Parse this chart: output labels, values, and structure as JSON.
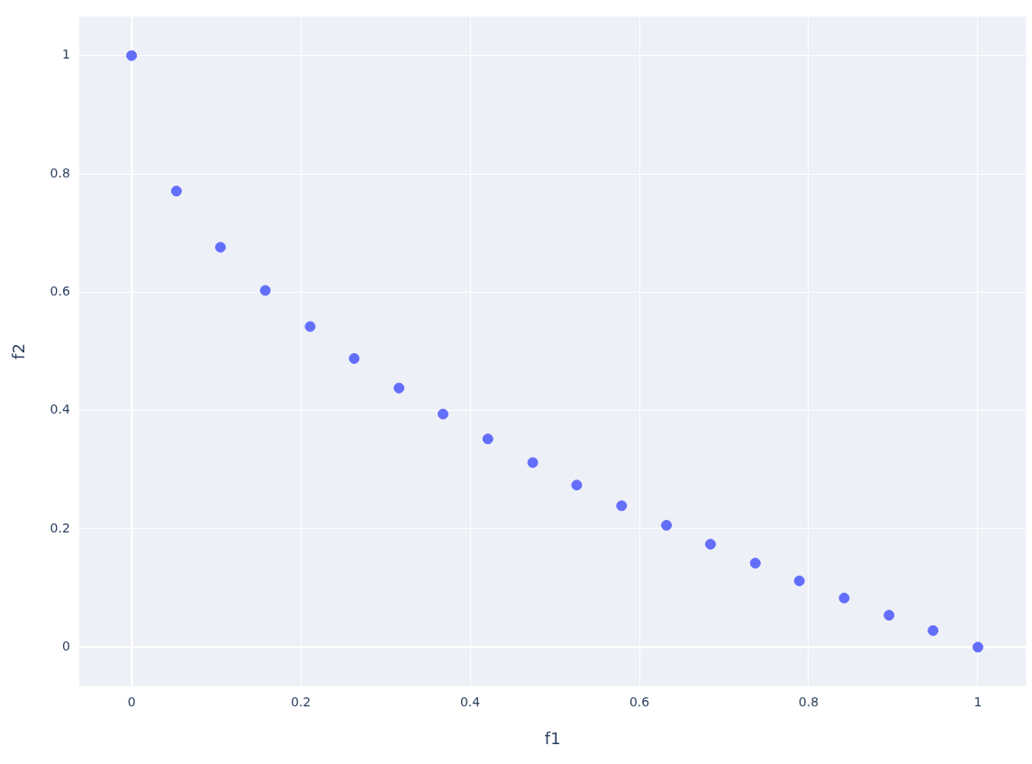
{
  "chart_data": {
    "type": "scatter",
    "xlabel": "f1",
    "ylabel": "f2",
    "x": [
      0,
      0.053,
      0.105,
      0.158,
      0.211,
      0.263,
      0.316,
      0.368,
      0.421,
      0.474,
      0.526,
      0.579,
      0.632,
      0.684,
      0.737,
      0.789,
      0.842,
      0.895,
      0.947,
      1
    ],
    "series": [
      {
        "color": "#636efa",
        "values": [
          1,
          0.771,
          0.676,
          0.603,
          0.542,
          0.488,
          0.438,
          0.394,
          0.352,
          0.312,
          0.274,
          0.239,
          0.206,
          0.174,
          0.142,
          0.112,
          0.083,
          0.054,
          0.028,
          0
        ]
      }
    ],
    "xlim": [
      -0.062,
      1.057
    ],
    "ylim": [
      -0.066,
      1.066
    ],
    "xticks": [
      0,
      0.2,
      0.4,
      0.6,
      0.8,
      1
    ],
    "yticks": [
      0,
      0.2,
      0.4,
      0.6,
      0.8,
      1
    ],
    "grid": true,
    "marker": "circle",
    "legend": false
  }
}
